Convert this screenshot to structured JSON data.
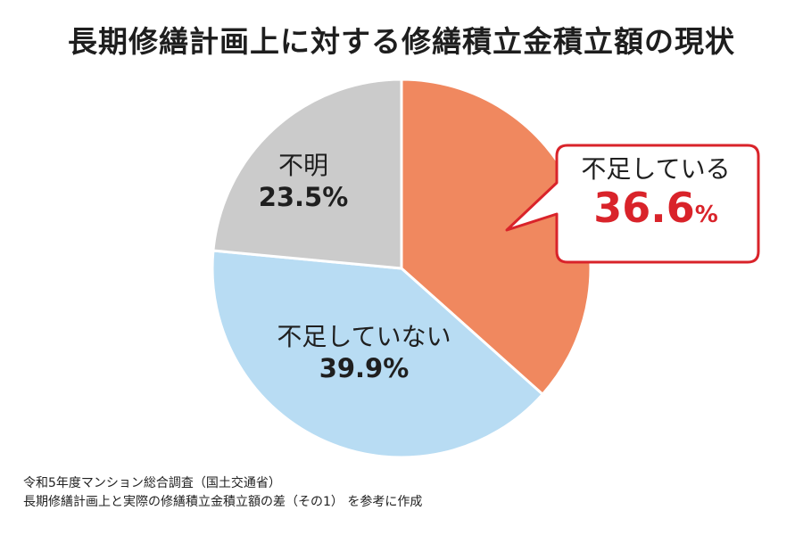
{
  "chart_data": {
    "type": "pie",
    "title": "長期修繕計画上に対する修繕積立金積立額の現状",
    "slices": [
      {
        "label": "不足している",
        "value": 36.6,
        "display": "36.6",
        "unit": "%",
        "color": "#f0885f"
      },
      {
        "label": "不足していない",
        "value": 39.9,
        "display": "39.9%",
        "color": "#b8dcf3"
      },
      {
        "label": "不明",
        "value": 23.5,
        "display": "23.5%",
        "color": "#cbcbcb"
      }
    ],
    "callout_border_color": "#d9232a"
  },
  "source": {
    "line1": "令和5年度マンション総合調査（国土交通省）",
    "line2": "長期修繕計画上と実際の修繕積立金積立額の差（その1） を参考に作成"
  }
}
